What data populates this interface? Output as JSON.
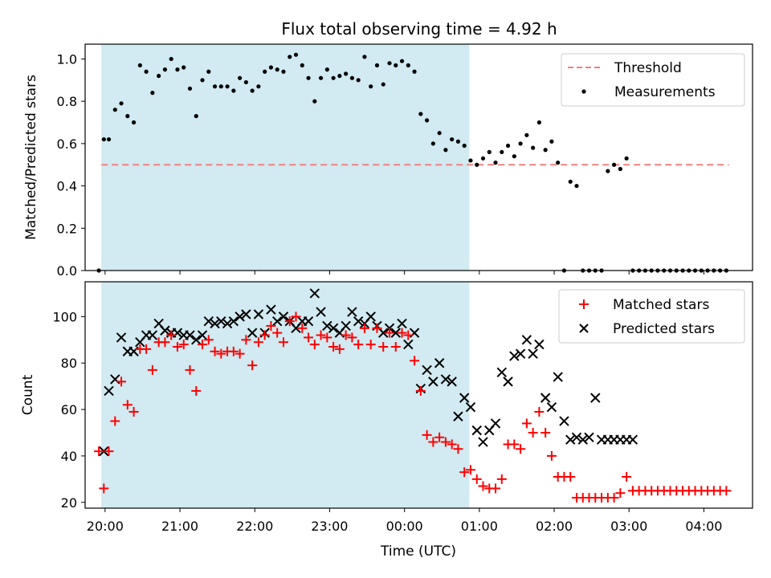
{
  "title": "Flux total observing time = 4.92 h",
  "xlabel": "Time (UTC)",
  "x_tick_labels": [
    "20:00",
    "21:00",
    "22:00",
    "23:00",
    "00:00",
    "01:00",
    "02:00",
    "03:00",
    "04:00"
  ],
  "colors": {
    "threshold": "#f08080",
    "measurements": "#000000",
    "matched": "#ff0000",
    "predicted": "#000000",
    "span": "#add8e6"
  },
  "chart_data": [
    {
      "type": "scatter",
      "ylabel": "Matched/Predicted stars",
      "ylim": [
        0,
        1.07
      ],
      "y_tick_labels": [
        "0.0",
        "0.2",
        "0.4",
        "0.6",
        "0.8",
        "1.0"
      ],
      "y_ticks": [
        0,
        0.2,
        0.4,
        0.6,
        0.8,
        1.0
      ],
      "legend_position": "top-right",
      "legend": [
        "Threshold",
        "Measurements"
      ],
      "observing_span": {
        "start": "19:57",
        "end": "00:52"
      },
      "threshold": {
        "value": 0.5,
        "start": "19:57",
        "end": "04:20",
        "style": "dashed"
      },
      "series": [
        {
          "name": "Measurements",
          "x": [
            "19:55",
            "19:59",
            "20:03",
            "20:08",
            "20:13",
            "20:18",
            "20:23",
            "20:28",
            "20:33",
            "20:38",
            "20:43",
            "20:48",
            "20:53",
            "20:58",
            "21:03",
            "21:08",
            "21:13",
            "21:18",
            "21:23",
            "21:28",
            "21:33",
            "21:38",
            "21:43",
            "21:48",
            "21:53",
            "21:58",
            "22:03",
            "22:08",
            "22:13",
            "22:18",
            "22:23",
            "22:28",
            "22:33",
            "22:38",
            "22:43",
            "22:48",
            "22:53",
            "22:58",
            "23:03",
            "23:08",
            "23:13",
            "23:18",
            "23:23",
            "23:28",
            "23:33",
            "23:38",
            "23:43",
            "23:48",
            "23:53",
            "23:58",
            "00:03",
            "00:08",
            "00:13",
            "00:18",
            "00:23",
            "00:28",
            "00:33",
            "00:38",
            "00:43",
            "00:48",
            "00:53",
            "00:58",
            "01:03",
            "01:08",
            "01:13",
            "01:18",
            "01:23",
            "01:28",
            "01:33",
            "01:38",
            "01:43",
            "01:48",
            "01:53",
            "01:58",
            "02:03",
            "02:08",
            "02:13",
            "02:18",
            "02:23",
            "02:28",
            "02:33",
            "02:38",
            "02:43",
            "02:48",
            "02:53",
            "02:58",
            "03:03",
            "03:08",
            "03:13",
            "03:18",
            "03:23",
            "03:28",
            "03:33",
            "03:38",
            "03:43",
            "03:48",
            "03:53",
            "03:58",
            "04:03",
            "04:08",
            "04:13",
            "04:18"
          ],
          "y": [
            0.0,
            0.62,
            0.62,
            0.76,
            0.79,
            0.73,
            0.7,
            0.97,
            0.94,
            0.84,
            0.92,
            0.95,
            1.0,
            0.95,
            0.96,
            0.86,
            0.73,
            0.9,
            0.94,
            0.87,
            0.87,
            0.87,
            0.85,
            0.91,
            0.89,
            0.85,
            0.87,
            0.94,
            0.96,
            0.95,
            0.94,
            1.01,
            1.02,
            0.97,
            0.91,
            0.8,
            0.91,
            0.95,
            0.91,
            0.92,
            0.93,
            0.91,
            0.9,
            1.01,
            0.87,
            0.97,
            0.88,
            0.98,
            0.97,
            0.99,
            0.97,
            0.94,
            0.74,
            0.71,
            0.6,
            0.65,
            0.57,
            0.62,
            0.61,
            0.59,
            0.52,
            0.5,
            0.53,
            0.56,
            0.51,
            0.56,
            0.59,
            0.54,
            0.6,
            0.64,
            0.58,
            0.7,
            0.57,
            0.61,
            0.51,
            0.0,
            0.42,
            0.4,
            0.0,
            0.0,
            0.0,
            0.0,
            0.47,
            0.5,
            0.48,
            0.53,
            0.0,
            0.0,
            0.0,
            0.0,
            0.0,
            0.0,
            0.0,
            0.0,
            0.0,
            0.0,
            0.0,
            0.0,
            0.0,
            0.0,
            0.0,
            0.0
          ]
        }
      ]
    },
    {
      "type": "scatter",
      "ylabel": "Count",
      "ylim": [
        17.5,
        115
      ],
      "y_tick_labels": [
        "20",
        "40",
        "60",
        "80",
        "100"
      ],
      "y_ticks": [
        20,
        40,
        60,
        80,
        100
      ],
      "legend_position": "top-right",
      "legend": [
        "Matched stars",
        "Predicted stars"
      ],
      "observing_span": {
        "start": "19:57",
        "end": "00:52"
      },
      "series": [
        {
          "name": "Matched stars",
          "x": [
            "19:55",
            "19:59",
            "20:03",
            "20:08",
            "20:13",
            "20:18",
            "20:23",
            "20:28",
            "20:33",
            "20:38",
            "20:43",
            "20:48",
            "20:53",
            "20:58",
            "21:03",
            "21:08",
            "21:13",
            "21:18",
            "21:23",
            "21:28",
            "21:33",
            "21:38",
            "21:43",
            "21:48",
            "21:53",
            "21:58",
            "22:03",
            "22:08",
            "22:13",
            "22:18",
            "22:23",
            "22:28",
            "22:33",
            "22:38",
            "22:43",
            "22:48",
            "22:53",
            "22:58",
            "23:03",
            "23:08",
            "23:13",
            "23:18",
            "23:23",
            "23:28",
            "23:33",
            "23:38",
            "23:43",
            "23:48",
            "23:53",
            "23:58",
            "00:03",
            "00:08",
            "00:13",
            "00:18",
            "00:23",
            "00:28",
            "00:33",
            "00:38",
            "00:43",
            "00:48",
            "00:53",
            "00:58",
            "01:03",
            "01:08",
            "01:13",
            "01:18",
            "01:23",
            "01:28",
            "01:33",
            "01:38",
            "01:43",
            "01:48",
            "01:53",
            "01:58",
            "02:03",
            "02:08",
            "02:13",
            "02:18",
            "02:23",
            "02:28",
            "02:33",
            "02:38",
            "02:43",
            "02:48",
            "02:53",
            "02:58",
            "03:03",
            "03:08",
            "03:13",
            "03:18",
            "03:23",
            "03:28",
            "03:33",
            "03:38",
            "03:43",
            "03:48",
            "03:53",
            "03:58",
            "04:03",
            "04:08",
            "04:13",
            "04:18"
          ],
          "y": [
            42,
            26,
            42,
            55,
            72,
            62,
            59,
            86,
            86,
            77,
            89,
            89,
            92,
            87,
            88,
            77,
            68,
            88,
            90,
            85,
            84,
            85,
            85,
            84,
            90,
            79,
            89,
            92,
            96,
            93,
            89,
            98,
            100,
            95,
            91,
            88,
            92,
            91,
            87,
            86,
            92,
            91,
            88,
            95,
            88,
            95,
            87,
            93,
            87,
            93,
            92,
            81,
            68,
            49,
            46,
            48,
            46,
            45,
            43,
            33,
            34,
            30,
            27,
            26,
            26,
            30,
            45,
            45,
            43,
            54,
            50,
            59,
            50,
            40,
            31,
            31,
            31,
            22,
            22,
            22,
            22,
            22,
            22,
            22,
            24,
            31,
            25,
            25,
            25,
            25,
            25,
            25,
            25,
            25,
            25,
            25,
            25,
            25,
            25,
            25,
            25,
            25
          ]
        },
        {
          "name": "Predicted stars",
          "x": [
            "19:59",
            "20:03",
            "20:08",
            "20:13",
            "20:18",
            "20:23",
            "20:28",
            "20:33",
            "20:38",
            "20:43",
            "20:48",
            "20:53",
            "20:58",
            "21:03",
            "21:08",
            "21:13",
            "21:18",
            "21:23",
            "21:28",
            "21:33",
            "21:38",
            "21:43",
            "21:48",
            "21:53",
            "21:58",
            "22:03",
            "22:08",
            "22:13",
            "22:18",
            "22:23",
            "22:28",
            "22:33",
            "22:38",
            "22:43",
            "22:48",
            "22:53",
            "22:58",
            "23:03",
            "23:08",
            "23:13",
            "23:18",
            "23:23",
            "23:28",
            "23:33",
            "23:38",
            "23:43",
            "23:48",
            "23:53",
            "23:58",
            "00:03",
            "00:08",
            "00:13",
            "00:18",
            "00:23",
            "00:28",
            "00:33",
            "00:38",
            "00:43",
            "00:48",
            "00:53",
            "00:58",
            "01:03",
            "01:08",
            "01:13",
            "01:18",
            "01:23",
            "01:28",
            "01:33",
            "01:38",
            "01:43",
            "01:48",
            "01:53",
            "01:58",
            "02:03",
            "02:08",
            "02:13",
            "02:18",
            "02:23",
            "02:28",
            "02:33",
            "02:38",
            "02:43",
            "02:48",
            "02:53",
            "02:58",
            "03:03"
          ],
          "y": [
            42,
            68,
            73,
            91,
            85,
            85,
            89,
            92,
            92,
            97,
            94,
            93,
            93,
            92,
            92,
            90,
            92,
            98,
            97,
            98,
            97,
            98,
            100,
            101,
            93,
            101,
            93,
            103,
            98,
            100,
            98,
            95,
            98,
            98,
            110,
            102,
            96,
            95,
            93,
            96,
            102,
            98,
            97,
            100,
            96,
            93,
            95,
            93,
            97,
            88,
            93,
            69,
            77,
            72,
            80,
            73,
            72,
            57,
            65,
            61,
            51,
            46,
            51,
            54,
            76,
            72,
            83,
            84,
            90,
            84,
            88,
            65,
            61,
            74,
            55,
            47,
            48,
            47,
            48,
            65,
            47,
            47,
            47,
            47,
            47,
            47
          ]
        }
      ]
    }
  ]
}
